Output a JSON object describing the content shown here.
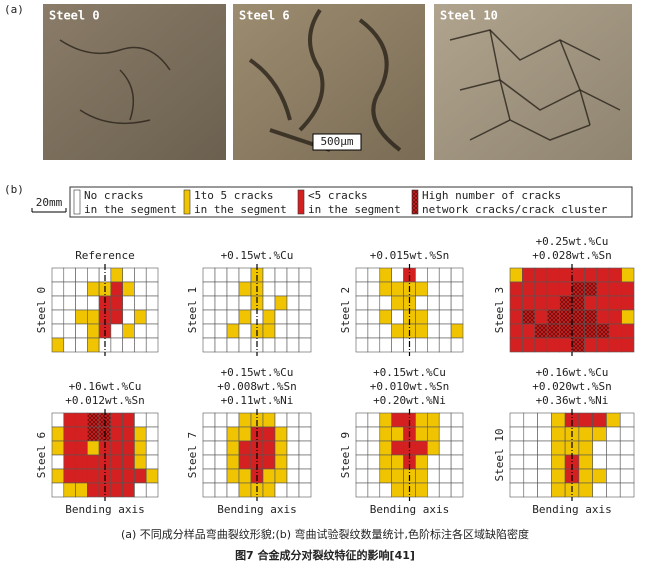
{
  "panel_a": {
    "label": "(a)",
    "photos": [
      {
        "label": "Steel 0"
      },
      {
        "label": "Steel 6"
      },
      {
        "label": "Steel 10"
      }
    ],
    "scale_bar": "500μm"
  },
  "panel_b": {
    "label": "(b)",
    "scale_bar": "20mm",
    "legend": [
      {
        "line1": "No cracks",
        "line2": "in the segment"
      },
      {
        "line1": "1to 5 cracks",
        "line2": "in the segment"
      },
      {
        "line1": "<5 cracks",
        "line2": "in the segment"
      },
      {
        "line1": "High number of cracks",
        "line2": "network cracks/crack cluster"
      }
    ],
    "grids": [
      {
        "steel": "Steel 0",
        "composition": [
          "Reference"
        ]
      },
      {
        "steel": "Steel 1",
        "composition": [
          "+0.15wt.%Cu"
        ]
      },
      {
        "steel": "Steel 2",
        "composition": [
          "+0.015wt.%Sn"
        ]
      },
      {
        "steel": "Steel 3",
        "composition": [
          "+0.25wt.%Cu",
          "+0.028wt.%Sn"
        ]
      },
      {
        "steel": "Steel 6",
        "composition": [
          "+0.16wt.%Cu",
          "+0.012wt.%Sn"
        ]
      },
      {
        "steel": "Steel 7",
        "composition": [
          "+0.15wt.%Cu",
          "+0.008wt.%Sn",
          "+0.11wt.%Ni"
        ]
      },
      {
        "steel": "Steel 9",
        "composition": [
          "+0.15wt.%Cu",
          "+0.010wt.%Sn",
          "+0.20wt.%Ni"
        ]
      },
      {
        "steel": "Steel 10",
        "composition": [
          "+0.16wt.%Cu",
          "+0.020wt.%Sn",
          "+0.36wt.%Ni"
        ]
      }
    ],
    "axis_label": "Bending axis"
  },
  "caption": {
    "line1": "(a) 不同成分样品弯曲裂纹形貌;(b) 弯曲试验裂纹数量统计,色阶标注各区域缺陷密度",
    "line2": "图7 合金成分对裂纹特征的影响[41]"
  }
}
